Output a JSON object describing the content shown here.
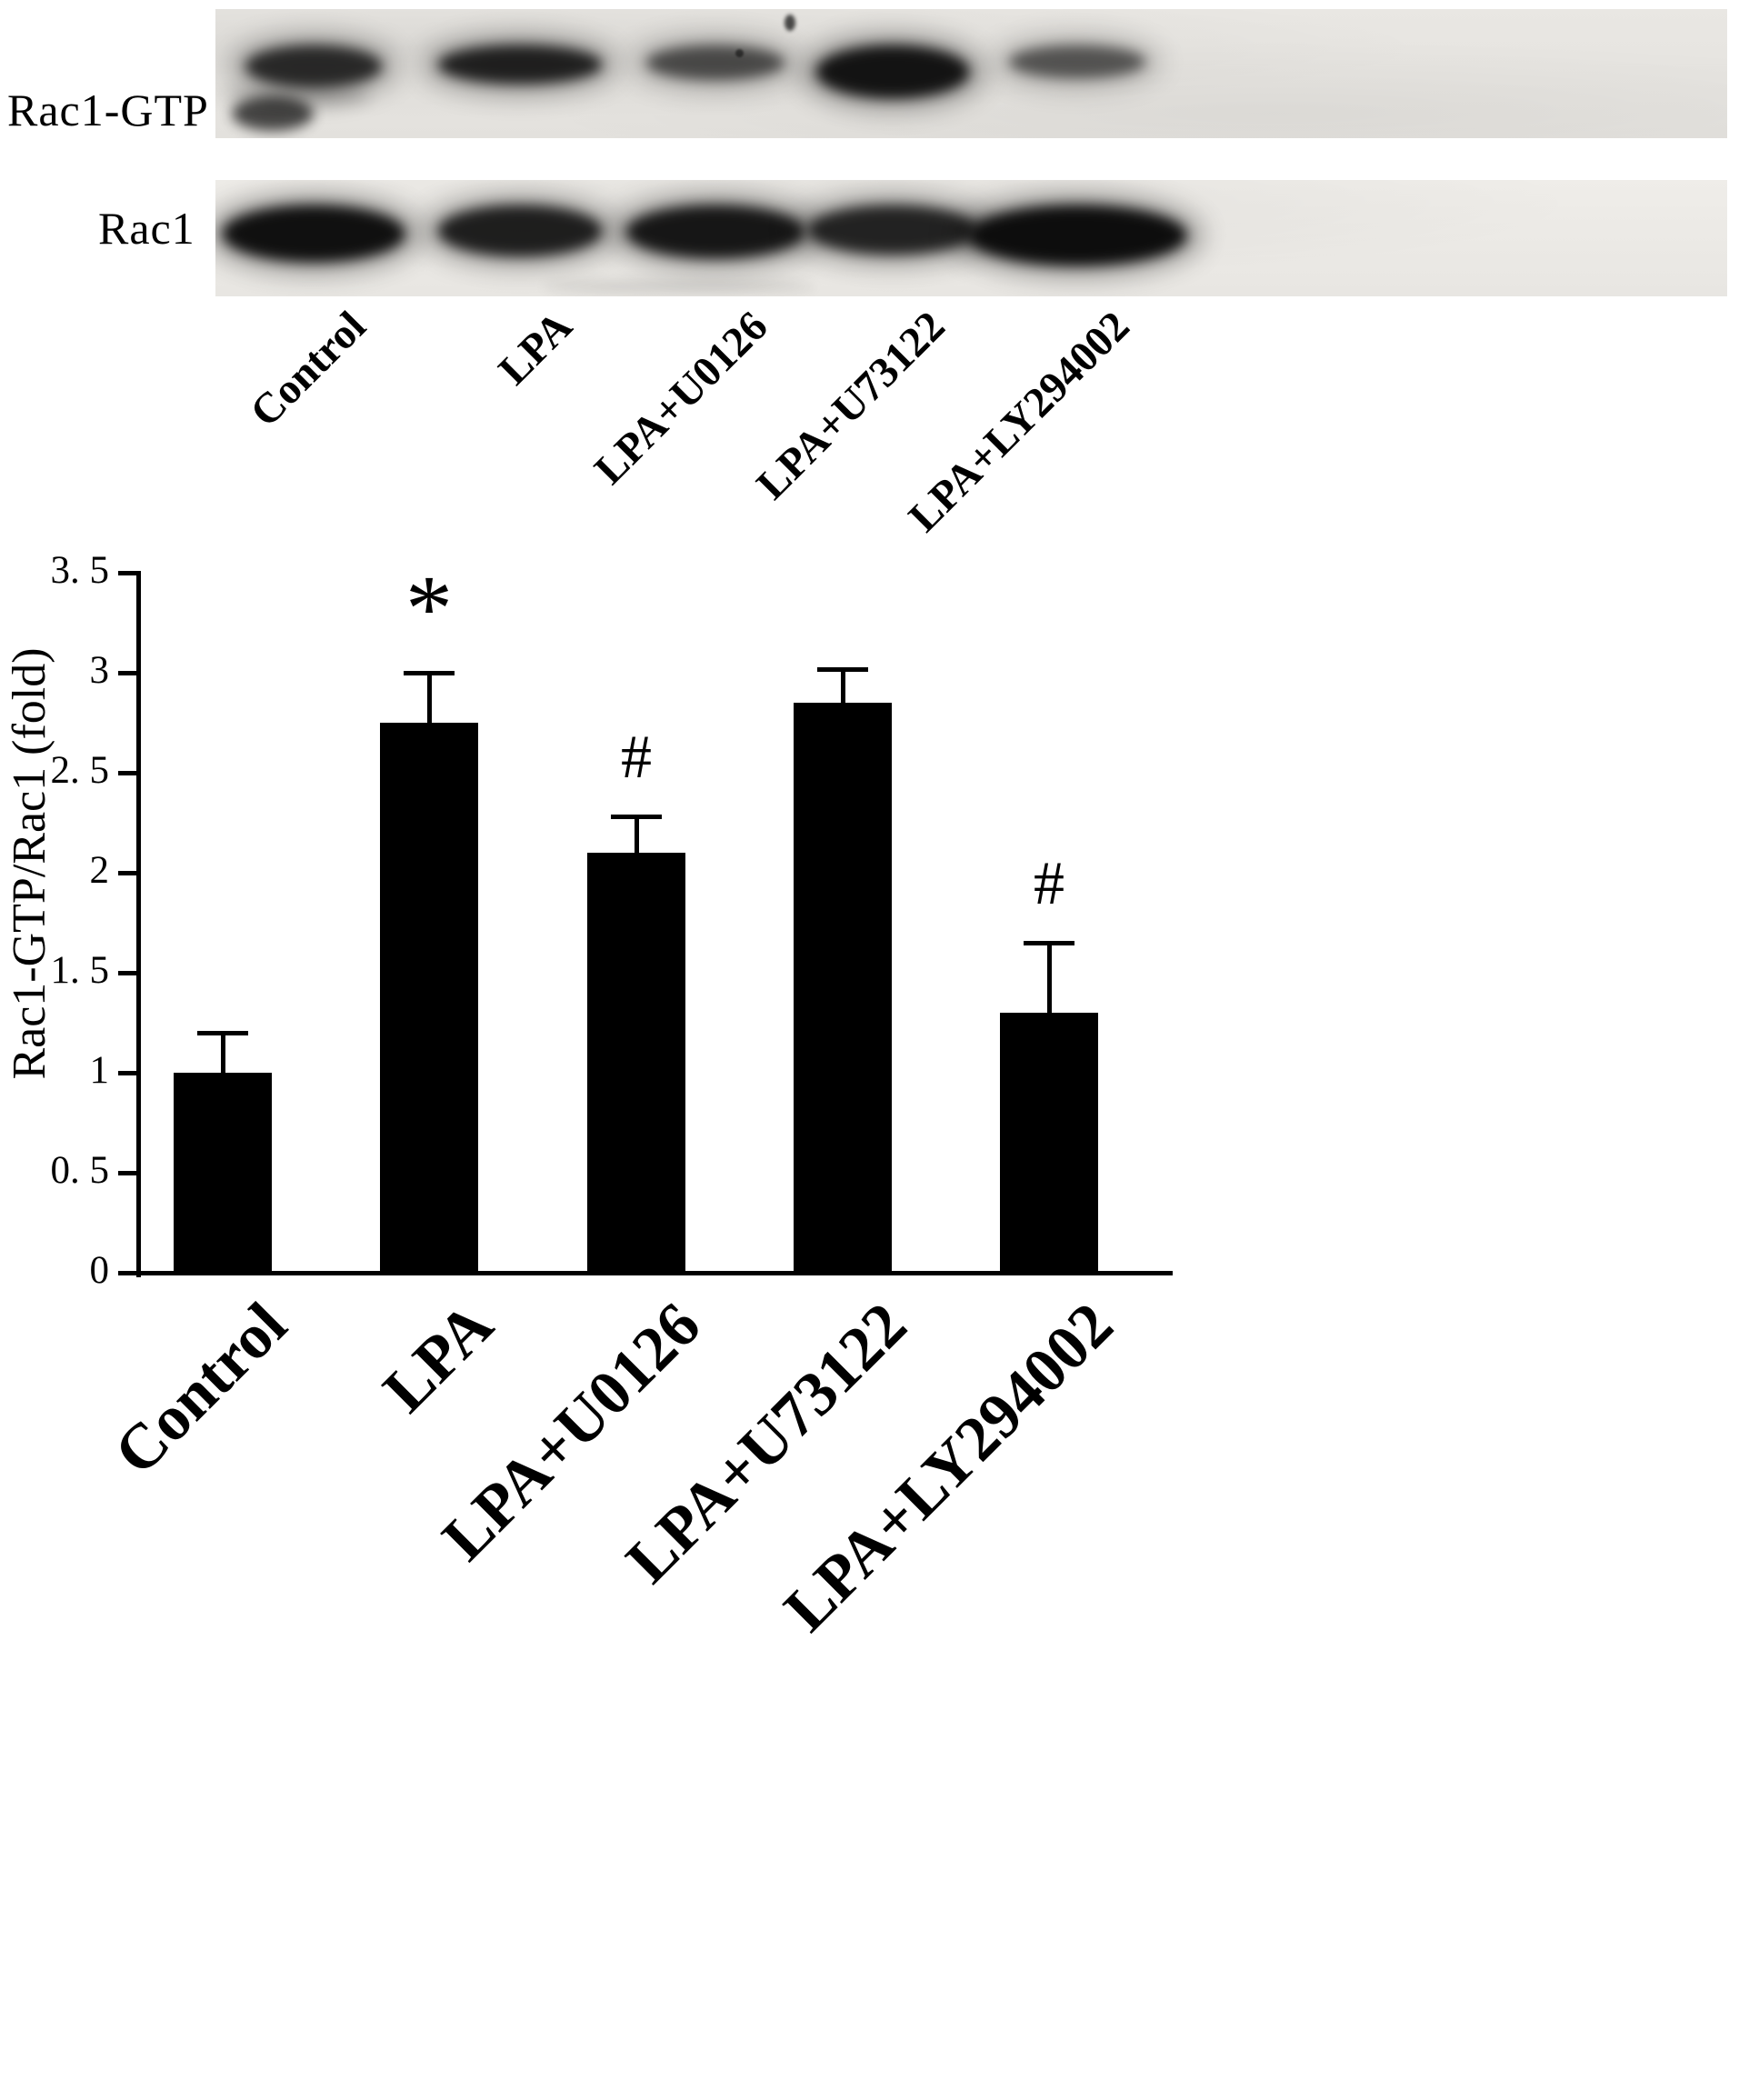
{
  "blot": {
    "rows": [
      {
        "label": "Rac1-GTP",
        "band_opacity": [
          0.78,
          0.84,
          0.6,
          0.92,
          0.55
        ]
      },
      {
        "label": "Rac1",
        "band_opacity": [
          0.95,
          0.85,
          0.9,
          0.82,
          0.97
        ]
      }
    ],
    "lane_labels": [
      "Control",
      "LPA",
      "LPA+U0126",
      "LPA+U73122",
      "LPA+LY294002"
    ]
  },
  "chart_data": {
    "type": "bar",
    "title": "",
    "xlabel": "",
    "ylabel": "Rac1-GTP/Rac1 (fold)",
    "categories": [
      "Control",
      "LPA",
      "LPA+U0126",
      "LPA+U73122",
      "LPA+LY294002"
    ],
    "values": [
      1.0,
      2.75,
      2.1,
      2.85,
      1.3
    ],
    "errors": [
      0.2,
      0.25,
      0.18,
      0.17,
      0.35
    ],
    "significance": [
      "",
      "*",
      "#",
      "",
      "#"
    ],
    "ylim": [
      0,
      3.5
    ],
    "yticks": [
      0,
      0.5,
      1,
      1.5,
      2,
      2.5,
      3,
      3.5
    ],
    "ytick_labels": [
      "0",
      "0. 5",
      "1",
      "1. 5",
      "2",
      "2. 5",
      "3",
      "3. 5"
    ],
    "bar_color": "#000000",
    "grid": false,
    "legend": null
  }
}
